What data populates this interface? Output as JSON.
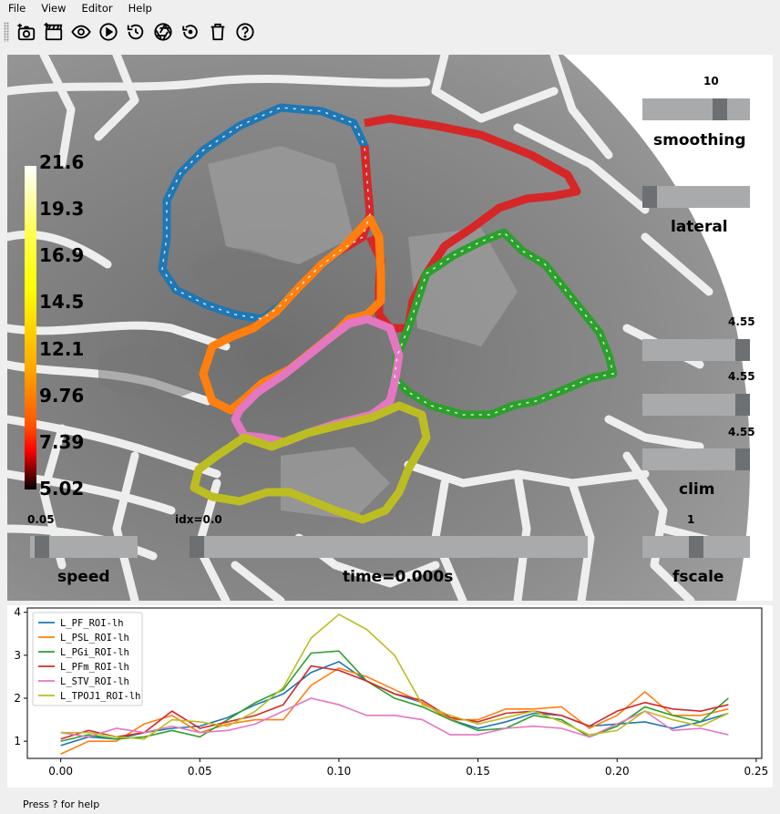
{
  "menu": [
    "File",
    "View",
    "Editor",
    "Help"
  ],
  "toolbar": {
    "icons": [
      "screenshot-icon",
      "movie-icon",
      "eye-icon",
      "play-icon",
      "history-icon",
      "camera-shutter-icon",
      "restore-icon",
      "trash-icon",
      "help-icon"
    ]
  },
  "colorbar": {
    "labels": [
      "21.6",
      "19.3",
      "16.9",
      "14.5",
      "12.1",
      "9.76",
      "7.39",
      "5.02"
    ],
    "colors": [
      "#ffffff",
      "#ffff00",
      "#ff8000",
      "#ff0000",
      "#000000"
    ]
  },
  "controls": {
    "smoothing": {
      "label": "smoothing",
      "value": "10",
      "fraction": 0.75
    },
    "lateral": {
      "label": "lateral",
      "fraction": 0.0
    },
    "clim": {
      "label": "clim",
      "values": [
        "4.55",
        "4.55",
        "4.55"
      ],
      "fraction": 1.0
    },
    "speed": {
      "label": "speed",
      "value": "0.05",
      "fraction": 0.05
    },
    "time": {
      "label": "time=0.000s",
      "value": "idx=0.0",
      "fraction": 0.0
    },
    "fscale": {
      "label": "fscale",
      "value": "1",
      "fraction": 0.5
    }
  },
  "roi_colors": {
    "L_PF_ROI-lh": "#1f77b4",
    "L_PSL_ROI-lh": "#ff7f0e",
    "L_PGi_ROI-lh": "#2ca02c",
    "L_PFm_ROI-lh": "#d62728",
    "L_STV_ROI-lh": "#e377c2",
    "L_TPOJ1_ROI-lh": "#bcbd22"
  },
  "chart_data": {
    "type": "line",
    "x": [
      0.0,
      0.01,
      0.02,
      0.03,
      0.04,
      0.05,
      0.06,
      0.07,
      0.08,
      0.09,
      0.1,
      0.11,
      0.12,
      0.13,
      0.14,
      0.15,
      0.16,
      0.17,
      0.18,
      0.19,
      0.2,
      0.21,
      0.22,
      0.23,
      0.24
    ],
    "xticks": [
      "0.00",
      "0.05",
      "0.10",
      "0.15",
      "0.20",
      "0.25"
    ],
    "yticks": [
      "1",
      "2",
      "3",
      "4"
    ],
    "xlim": [
      -0.012,
      0.252
    ],
    "ylim": [
      0.6,
      4.1
    ],
    "legend": "top-left",
    "series": [
      {
        "name": "L_PF_ROI-lh",
        "color": "#1f77b4",
        "values": [
          0.9,
          1.1,
          1.05,
          1.2,
          1.3,
          1.35,
          1.55,
          1.85,
          2.1,
          2.6,
          2.85,
          2.4,
          2.1,
          1.9,
          1.5,
          1.3,
          1.45,
          1.65,
          1.6,
          1.35,
          1.4,
          1.45,
          1.3,
          1.45,
          1.65
        ]
      },
      {
        "name": "L_PSL_ROI-lh",
        "color": "#ff7f0e",
        "values": [
          0.7,
          1.0,
          1.0,
          1.4,
          1.6,
          1.2,
          1.4,
          1.5,
          1.5,
          2.3,
          2.7,
          2.5,
          2.2,
          1.9,
          1.5,
          1.5,
          1.75,
          1.75,
          1.8,
          1.3,
          1.6,
          2.15,
          1.6,
          1.6,
          1.75
        ]
      },
      {
        "name": "L_PGi_ROI-lh",
        "color": "#2ca02c",
        "values": [
          1.0,
          1.15,
          1.05,
          1.1,
          1.25,
          1.1,
          1.5,
          1.9,
          2.2,
          3.05,
          3.1,
          2.4,
          2.0,
          1.8,
          1.5,
          1.25,
          1.3,
          1.6,
          1.5,
          1.1,
          1.35,
          1.8,
          1.6,
          1.45,
          2.0
        ]
      },
      {
        "name": "L_PFm_ROI-lh",
        "color": "#d62728",
        "values": [
          1.05,
          1.25,
          1.1,
          1.2,
          1.7,
          1.3,
          1.45,
          1.6,
          1.85,
          2.75,
          2.65,
          2.4,
          2.1,
          1.95,
          1.55,
          1.45,
          1.65,
          1.7,
          1.6,
          1.35,
          1.7,
          1.9,
          1.75,
          1.7,
          1.85
        ]
      },
      {
        "name": "L_STV_ROI-lh",
        "color": "#e377c2",
        "values": [
          1.2,
          1.1,
          1.3,
          1.2,
          1.35,
          1.2,
          1.25,
          1.4,
          1.7,
          2.0,
          1.85,
          1.6,
          1.6,
          1.5,
          1.15,
          1.15,
          1.3,
          1.35,
          1.3,
          1.1,
          1.4,
          1.7,
          1.25,
          1.3,
          1.15
        ]
      },
      {
        "name": "L_TPOJ1_ROI-lh",
        "color": "#bcbd22",
        "values": [
          1.2,
          1.2,
          1.1,
          1.05,
          1.5,
          1.45,
          1.35,
          1.7,
          2.25,
          3.4,
          3.95,
          3.6,
          3.0,
          1.85,
          1.6,
          1.4,
          1.55,
          1.7,
          1.45,
          1.15,
          1.25,
          1.7,
          1.5,
          1.35,
          1.65
        ]
      }
    ]
  },
  "status": {
    "text": "Press ? for help"
  }
}
